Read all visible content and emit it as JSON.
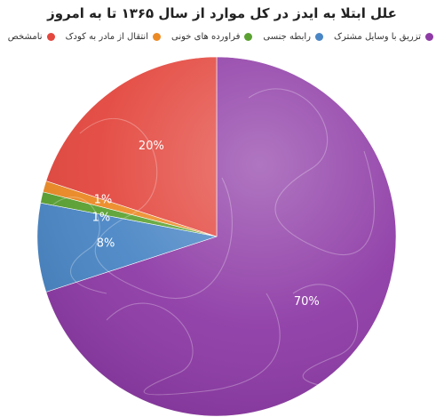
{
  "chart_data": {
    "type": "pie",
    "title": "علل ابتلا به ایدز در کل موارد از سال ۱۳۶۵ تا به امروز",
    "legend_position": "top",
    "series": [
      {
        "name": "تزریق با وسایل مشترک",
        "value": 70,
        "label": "70%",
        "color": "#8e3ba6"
      },
      {
        "name": "رابطه جنسی",
        "value": 8,
        "label": "8%",
        "color": "#4a86c5"
      },
      {
        "name": "فراورده های خونی",
        "value": 1,
        "label": "1%",
        "color": "#5aa132"
      },
      {
        "name": "انتقال از مادر به کودک",
        "value": 1,
        "label": "1%",
        "color": "#ec8a25"
      },
      {
        "name": "نامشخص",
        "value": 20,
        "label": "20%",
        "color": "#e3473e"
      }
    ]
  }
}
